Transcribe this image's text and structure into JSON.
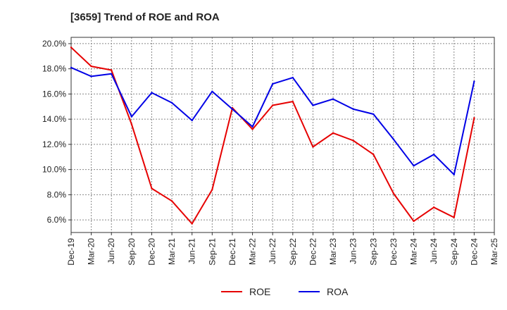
{
  "chart_data": {
    "type": "line",
    "title": "[3659]  Trend of ROE and ROA",
    "xlabel": "",
    "ylabel": "",
    "categories": [
      "Dec-19",
      "Mar-20",
      "Jun-20",
      "Sep-20",
      "Dec-20",
      "Mar-21",
      "Jun-21",
      "Sep-21",
      "Dec-21",
      "Mar-22",
      "Jun-22",
      "Sep-22",
      "Dec-22",
      "Mar-23",
      "Jun-23",
      "Sep-23",
      "Dec-23",
      "Mar-24",
      "Jun-24",
      "Sep-24",
      "Dec-24",
      "Mar-25"
    ],
    "y_ticks": [
      "6.0%",
      "8.0%",
      "10.0%",
      "12.0%",
      "14.0%",
      "16.0%",
      "18.0%",
      "20.0%"
    ],
    "ylim": [
      5.0,
      20.5
    ],
    "grid": true,
    "legend_position": "bottom",
    "series": [
      {
        "name": "ROE",
        "color": "#e60000",
        "values": [
          19.7,
          18.2,
          17.9,
          13.6,
          8.5,
          7.5,
          5.7,
          8.4,
          14.9,
          13.2,
          15.1,
          15.4,
          11.8,
          12.9,
          12.3,
          11.2,
          8.1,
          5.9,
          7.0,
          6.2,
          14.1,
          null
        ]
      },
      {
        "name": "ROA",
        "color": "#0000e6",
        "values": [
          18.1,
          17.4,
          17.6,
          14.2,
          16.1,
          15.3,
          13.9,
          16.2,
          14.8,
          13.4,
          16.8,
          17.3,
          15.1,
          15.6,
          14.8,
          14.4,
          12.4,
          10.3,
          11.2,
          9.6,
          17.0,
          null
        ]
      }
    ]
  }
}
